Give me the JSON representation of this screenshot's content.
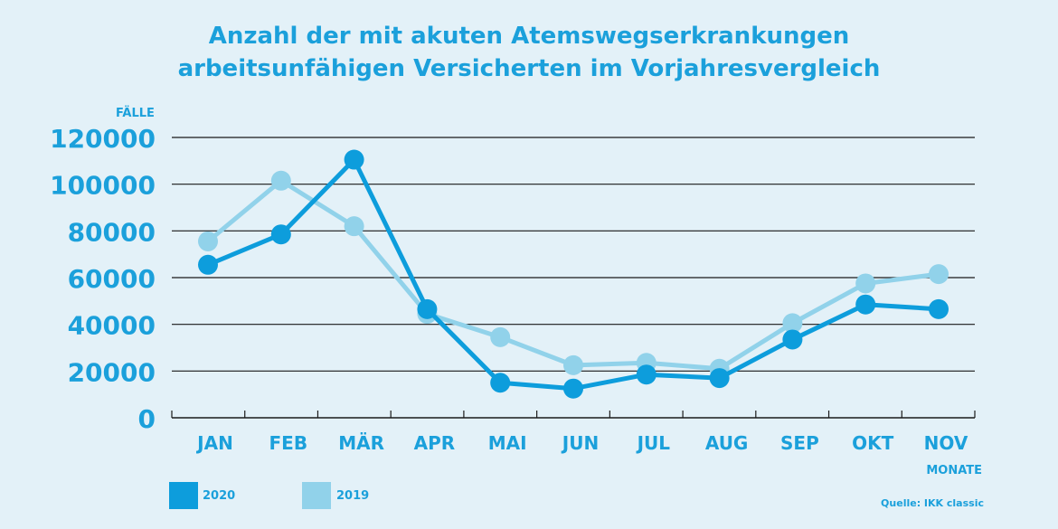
{
  "colors": {
    "background": "#e3f1f8",
    "text": "#1ba0db",
    "series_2020": "#0d9ddc",
    "series_2019": "#91d2ea",
    "grid": "#1a1a1a"
  },
  "source": "Quelle: IKK classic",
  "chart_data": {
    "type": "line",
    "title_lines": [
      "Anzahl der mit akuten Atemswegserkrankungen",
      "arbeitsunfähigen Versicherten im Vorjahresvergleich"
    ],
    "ylabel": "FÄLLE",
    "xlabel": "MONATE",
    "categories": [
      "JAN",
      "FEB",
      "MÄR",
      "APR",
      "MAI",
      "JUN",
      "JUL",
      "AUG",
      "SEP",
      "OKT",
      "NOV"
    ],
    "ylim": [
      0,
      120000
    ],
    "yticks": [
      "0",
      "20000",
      "40000",
      "60000",
      "80000",
      "100000",
      "120000"
    ],
    "grid": true,
    "legend_position": "bottom-left",
    "series": [
      {
        "name": "2019",
        "color": "#91d2ea",
        "values": [
          75500,
          101500,
          82000,
          44500,
          34500,
          22500,
          23500,
          21000,
          40500,
          57500,
          61500
        ]
      },
      {
        "name": "2020",
        "color": "#0d9ddc",
        "values": [
          65500,
          78500,
          110500,
          46500,
          15000,
          12500,
          18500,
          17000,
          33500,
          48500,
          46500
        ]
      }
    ]
  }
}
